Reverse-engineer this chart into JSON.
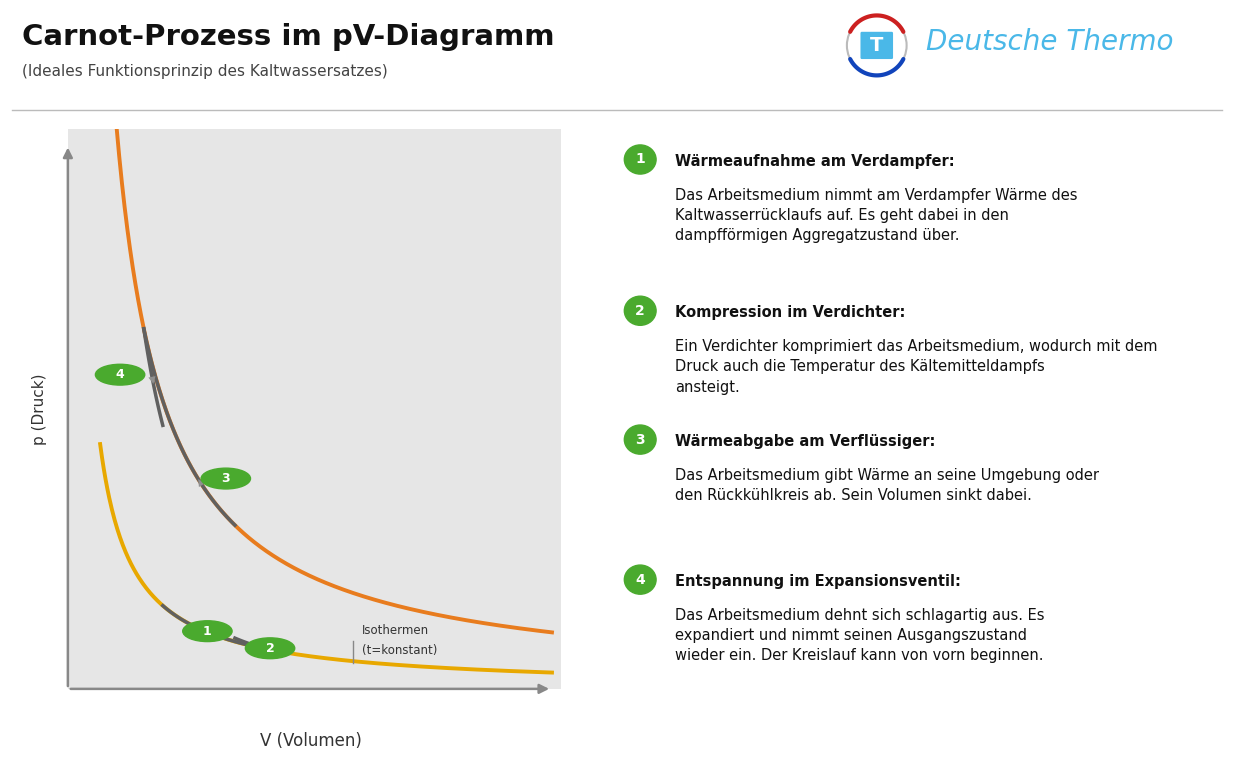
{
  "title": "Carnot-Prozess im pV-Diagramm",
  "subtitle": "(Ideales Funktionsprinzip des Kaltwassersatzes)",
  "white_bg": "#ffffff",
  "plot_bg_color": "#e6e6e6",
  "orange_hot": "#E87C1E",
  "yellow_cold": "#E8A800",
  "gray_curve": "#606060",
  "gray_arrow": "#909090",
  "green_circle": "#4aaa2e",
  "xlabel": "V (Volumen)",
  "ylabel": "p (Druck)",
  "isotherm_label1": "Isothermen",
  "isotherm_label2": "(t=konstant)",
  "logo_text": "Deutsche Thermo",
  "logo_color": "#4ab8e8",
  "C_hot": 1.8,
  "C_cold": 0.52,
  "gamma": 1.4,
  "VA": 0.5,
  "VB": 1.05,
  "VC": 0.88,
  "VD": 0.4,
  "steps": [
    {
      "num": "1",
      "bold": "Wärmeaufnahme am Verdampfer:",
      "text": "Das Arbeitsmedium nimmt am Verdampfer Wärme des\nKaltwasserrücklaufs auf. Es geht dabei in den\ndampfförmigen Aggregatzustand über."
    },
    {
      "num": "2",
      "bold": "Kompression im Verdichter:",
      "text": "Ein Verdichter komprimiert das Arbeitsmedium, wodurch mit dem\nDruck auch die Temperatur des Kältemitteldampfs\nansteigt."
    },
    {
      "num": "3",
      "bold": "Wärmeabgabe am Verflüssiger:",
      "text": "Das Arbeitsmedium gibt Wärme an seine Umgebung oder\nden Rückkühlkreis ab. Sein Volumen sinkt dabei."
    },
    {
      "num": "4",
      "bold": "Entspannung im Expansionsventil:",
      "text": "Das Arbeitsmedium dehnt sich schlagartig aus. Es\nexpandiert und nimmt seinen Ausgangszustand\nwieder ein. Der Kreislauf kann von vorn beginnen."
    }
  ]
}
